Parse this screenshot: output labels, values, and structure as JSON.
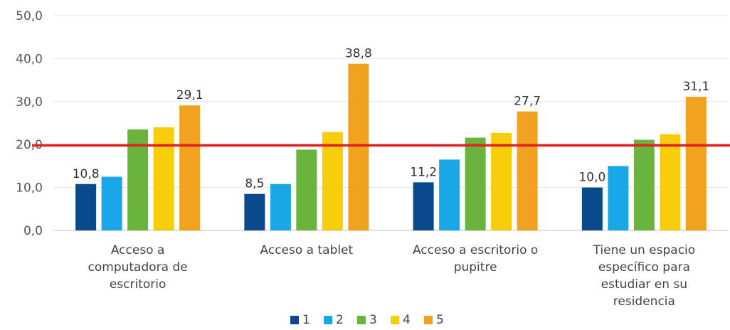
{
  "chart_data": {
    "type": "bar",
    "categories": [
      [
        "Acceso a",
        "computadora de",
        "escritorio"
      ],
      [
        "Acceso a tablet"
      ],
      [
        "Acceso  a escritorio  o",
        "pupitre"
      ],
      [
        "Tiene un espacio",
        "específico para",
        "estudiar en su",
        "residencia"
      ]
    ],
    "series": [
      {
        "name": "1",
        "color": "#0a4a8c",
        "values": [
          10.8,
          8.5,
          11.2,
          10.0
        ]
      },
      {
        "name": "2",
        "color": "#1aa7e8",
        "values": [
          12.5,
          10.8,
          16.5,
          15.0
        ]
      },
      {
        "name": "3",
        "color": "#6ab43e",
        "values": [
          23.5,
          18.8,
          21.6,
          21.1
        ]
      },
      {
        "name": "4",
        "color": "#f7cc0b",
        "values": [
          24.0,
          22.9,
          22.7,
          22.4
        ]
      },
      {
        "name": "5",
        "color": "#f0a21e",
        "values": [
          29.1,
          38.8,
          27.7,
          31.1
        ]
      }
    ],
    "data_labels": [
      {
        "series": 0,
        "category": 0,
        "text": "10,8"
      },
      {
        "series": 4,
        "category": 0,
        "text": "29,1"
      },
      {
        "series": 0,
        "category": 1,
        "text": "8,5"
      },
      {
        "series": 4,
        "category": 1,
        "text": "38,8"
      },
      {
        "series": 0,
        "category": 2,
        "text": "11,2"
      },
      {
        "series": 4,
        "category": 2,
        "text": "27,7"
      },
      {
        "series": 0,
        "category": 3,
        "text": "10,0"
      },
      {
        "series": 4,
        "category": 3,
        "text": "31,1"
      }
    ],
    "yticks": [
      "0,0",
      "10,0",
      "20,0",
      "30,0",
      "40,0",
      "50,0"
    ],
    "ylim": [
      0,
      50
    ],
    "reference_line": {
      "value": 19.8,
      "color": "#e02020"
    },
    "grid": true,
    "legend_position": "bottom",
    "title": "",
    "xlabel": "",
    "ylabel": ""
  }
}
